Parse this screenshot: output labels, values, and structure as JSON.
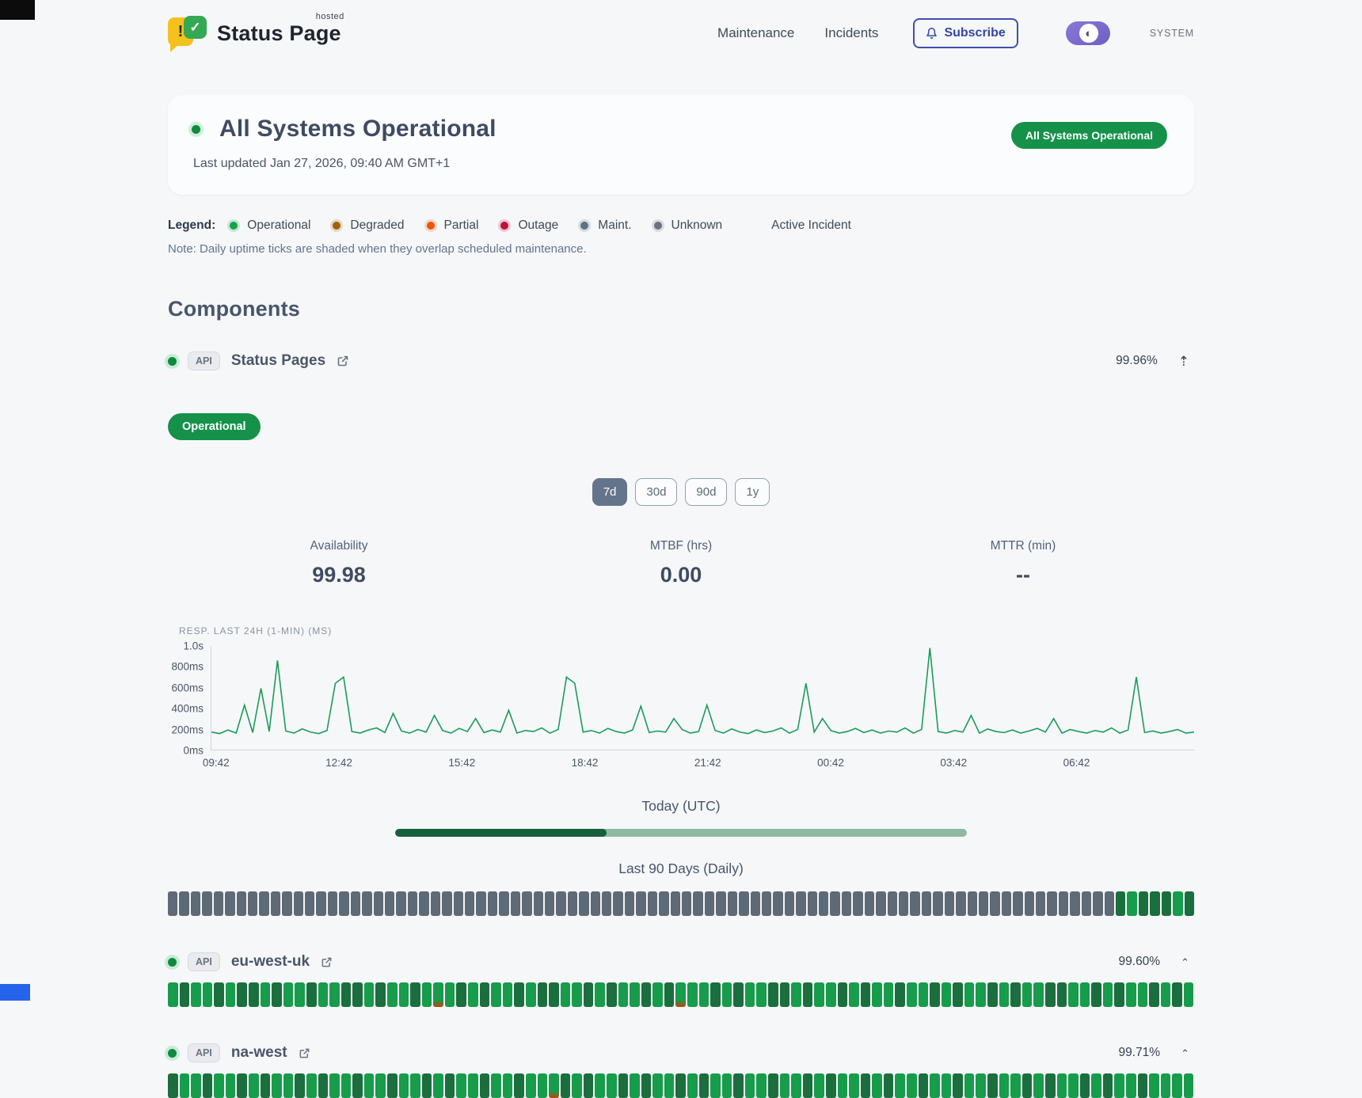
{
  "brand": {
    "name": "Status Page",
    "superscript": "hosted",
    "logo_exclaim": "!",
    "logo_check": "✓"
  },
  "nav": {
    "items": [
      {
        "label": "Maintenance"
      },
      {
        "label": "Incidents"
      }
    ],
    "subscribe_label": "Subscribe",
    "theme_label": "SYSTEM"
  },
  "hero": {
    "title": "All Systems Operational",
    "last_updated": "Last updated Jan 27, 2026, 09:40 AM GMT+1",
    "badge": "All Systems Operational"
  },
  "legend": {
    "label": "Legend:",
    "items": [
      {
        "label": "Operational",
        "color": "#16a34a"
      },
      {
        "label": "Degraded",
        "color": "#a16207"
      },
      {
        "label": "Partial",
        "color": "#ea580c"
      },
      {
        "label": "Outage",
        "color": "#be123c"
      },
      {
        "label": "Maint.",
        "color": "#5b7483"
      },
      {
        "label": "Unknown",
        "color": "#6b7280"
      }
    ],
    "extra": "Active Incident",
    "note": "Note: Daily uptime ticks are shaded when they overlap scheduled maintenance."
  },
  "components_heading": "Components",
  "component": {
    "tag": "API",
    "name": "Status Pages",
    "uptime": "99.96%",
    "status_badge": "Operational",
    "ranges": [
      {
        "label": "7d",
        "active": true
      },
      {
        "label": "30d",
        "active": false
      },
      {
        "label": "90d",
        "active": false
      },
      {
        "label": "1y",
        "active": false
      }
    ],
    "metrics": [
      {
        "label": "Availability",
        "value": "99.98"
      },
      {
        "label": "MTBF (hrs)",
        "value": "0.00"
      },
      {
        "label": "MTTR (min)",
        "value": "--"
      }
    ],
    "today_label": "Today (UTC)",
    "today_progress_percent": 37,
    "ninety_label": "Last 90 Days (Daily)",
    "ticks": "xxxxxxxxxxxxxxxxxxxxxxxxxxxxxxxxxxxxxxxxxxxxxxxxxxxxxxxxxxxxxxxxxxxxxxxxxxxxxxxxxxxdbdddbd"
  },
  "sub_components": [
    {
      "tag": "API",
      "name": "eu-west-uk",
      "uptime": "99.60%",
      "ticks": "bdbbdbddbdbbdbbddbdbbdbrbdbdbbdbddbbdbdbbdbdrbbdbdbbddbdbbdbdbbdbbdbdbbdbdbbddbbdbdbbdbdb"
    },
    {
      "tag": "API",
      "name": "na-west",
      "uptime": "99.71%",
      "ticks": "dbbdbbdbdbbdbdbbdbbdbbdbdbbdbbdbbrdbdbbdbdbbdbdbbdbbdbbdbdbbdbdbbdbbdbbdbbdbdbbdbdbbdbbbb"
    }
  ],
  "chart_data": {
    "type": "line",
    "title": "RESP. LAST 24H (1-MIN) (MS)",
    "xlabel": "",
    "ylabel": "",
    "x_ticks": [
      "09:42",
      "12:42",
      "15:42",
      "18:42",
      "21:42",
      "00:42",
      "03:42",
      "06:42"
    ],
    "y_ticks": [
      "1.0s",
      "800ms",
      "600ms",
      "400ms",
      "200ms",
      "0ms"
    ],
    "ylim": [
      0,
      1000
    ],
    "line_color": "#1a9c59",
    "points": [
      170,
      155,
      190,
      160,
      430,
      165,
      590,
      175,
      860,
      180,
      160,
      200,
      170,
      155,
      185,
      640,
      700,
      175,
      160,
      190,
      210,
      165,
      350,
      180,
      160,
      195,
      170,
      330,
      185,
      160,
      205,
      175,
      300,
      165,
      190,
      170,
      380,
      160,
      185,
      175,
      210,
      160,
      195,
      700,
      640,
      170,
      185,
      160,
      205,
      175,
      160,
      190,
      420,
      165,
      180,
      170,
      300,
      195,
      160,
      175,
      430,
      185,
      160,
      200,
      170,
      155,
      190,
      165,
      180,
      210,
      160,
      195,
      640,
      170,
      300,
      185,
      160,
      175,
      205,
      165,
      190,
      160,
      180,
      170,
      210,
      160,
      195,
      980,
      175,
      160,
      185,
      170,
      330,
      160,
      200,
      175,
      165,
      190,
      160,
      180,
      205,
      170,
      300,
      160,
      195,
      175,
      160,
      185,
      170,
      210,
      160,
      190,
      700,
      165,
      180,
      160,
      175,
      195,
      160,
      170
    ]
  },
  "tick_colors": {
    "x": "#5e6a75",
    "d": "#1b6e3d",
    "b": "#169c4b",
    "r": "red-bottom"
  }
}
